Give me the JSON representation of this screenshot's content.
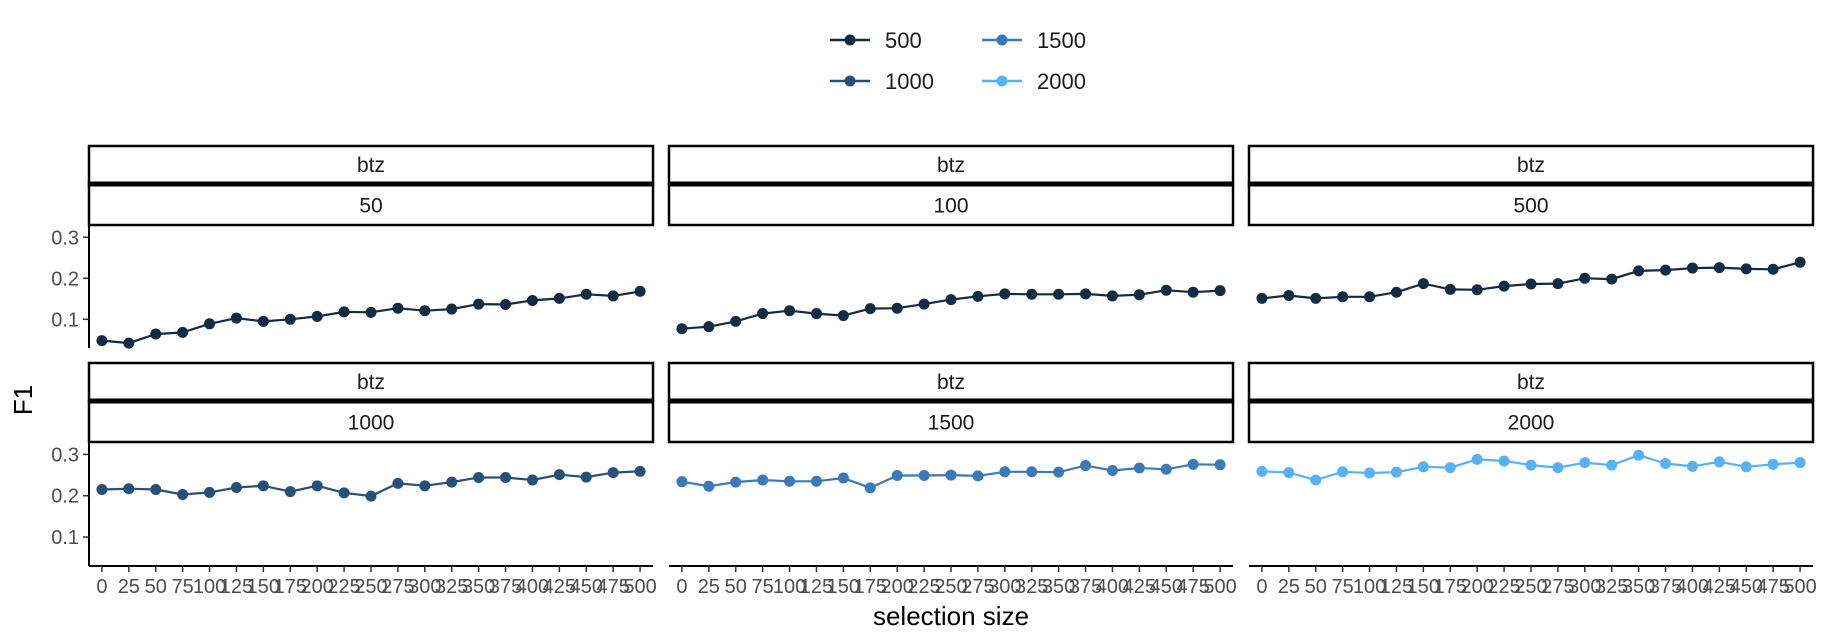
{
  "legend": {
    "items": [
      {
        "label": "500",
        "color": "#132B43"
      },
      {
        "label": "1000",
        "color": "#26507A"
      },
      {
        "label": "1500",
        "color": "#3A7AB8"
      },
      {
        "label": "2000",
        "color": "#56B1F7"
      }
    ],
    "placement": "top"
  },
  "chart_data": {
    "type": "line",
    "xlabel": "selection size",
    "ylabel": "F1",
    "x": [
      0,
      25,
      50,
      75,
      100,
      125,
      150,
      175,
      200,
      225,
      250,
      275,
      300,
      325,
      350,
      375,
      400,
      425,
      450,
      475,
      500
    ],
    "x_tick_labels": [
      "0",
      "25",
      "50",
      "75",
      "100",
      "125",
      "150",
      "175",
      "200",
      "225",
      "250",
      "275",
      "300",
      "325",
      "350",
      "375",
      "400",
      "425",
      "450",
      "475",
      "500"
    ],
    "y_ticks": [
      0.1,
      0.2,
      0.3
    ],
    "y_tick_labels": [
      "0.1",
      "0.2",
      "0.3"
    ],
    "ylim": [
      0.03,
      0.33
    ],
    "xlim": [
      -12,
      512
    ],
    "grid": false,
    "panels": [
      {
        "strip_top": "btz",
        "strip_bottom": "50",
        "series_name": "500",
        "color": "#132B43",
        "values": [
          0.048,
          0.042,
          0.064,
          0.068,
          0.089,
          0.103,
          0.095,
          0.1,
          0.107,
          0.118,
          0.117,
          0.127,
          0.121,
          0.125,
          0.137,
          0.136,
          0.146,
          0.151,
          0.161,
          0.157,
          0.168
        ]
      },
      {
        "strip_top": "btz",
        "strip_bottom": "100",
        "series_name": "500",
        "color": "#132B43",
        "values": [
          0.077,
          0.082,
          0.095,
          0.114,
          0.121,
          0.114,
          0.109,
          0.126,
          0.127,
          0.137,
          0.148,
          0.156,
          0.162,
          0.161,
          0.161,
          0.162,
          0.157,
          0.16,
          0.171,
          0.166,
          0.17
        ]
      },
      {
        "strip_top": "btz",
        "strip_bottom": "500",
        "series_name": "500",
        "color": "#132B43",
        "values": [
          0.151,
          0.158,
          0.151,
          0.155,
          0.155,
          0.166,
          0.187,
          0.173,
          0.172,
          0.181,
          0.186,
          0.187,
          0.2,
          0.198,
          0.218,
          0.22,
          0.225,
          0.226,
          0.223,
          0.222,
          0.239
        ]
      },
      {
        "strip_top": "btz",
        "strip_bottom": "1000",
        "series_name": "1000",
        "color": "#26507A",
        "values": [
          0.215,
          0.217,
          0.215,
          0.203,
          0.208,
          0.22,
          0.224,
          0.21,
          0.224,
          0.207,
          0.199,
          0.23,
          0.224,
          0.233,
          0.244,
          0.244,
          0.238,
          0.251,
          0.245,
          0.256,
          0.259
        ]
      },
      {
        "strip_top": "btz",
        "strip_bottom": "1500",
        "series_name": "1500",
        "color": "#3A7AB8",
        "values": [
          0.234,
          0.223,
          0.233,
          0.238,
          0.235,
          0.235,
          0.243,
          0.219,
          0.249,
          0.249,
          0.25,
          0.248,
          0.258,
          0.258,
          0.257,
          0.273,
          0.261,
          0.267,
          0.264,
          0.276,
          0.275
        ]
      },
      {
        "strip_top": "btz",
        "strip_bottom": "2000",
        "series_name": "2000",
        "color": "#56B1F7",
        "values": [
          0.259,
          0.256,
          0.238,
          0.258,
          0.255,
          0.257,
          0.27,
          0.268,
          0.288,
          0.284,
          0.274,
          0.268,
          0.28,
          0.274,
          0.298,
          0.278,
          0.271,
          0.282,
          0.27,
          0.276,
          0.28
        ]
      }
    ]
  }
}
